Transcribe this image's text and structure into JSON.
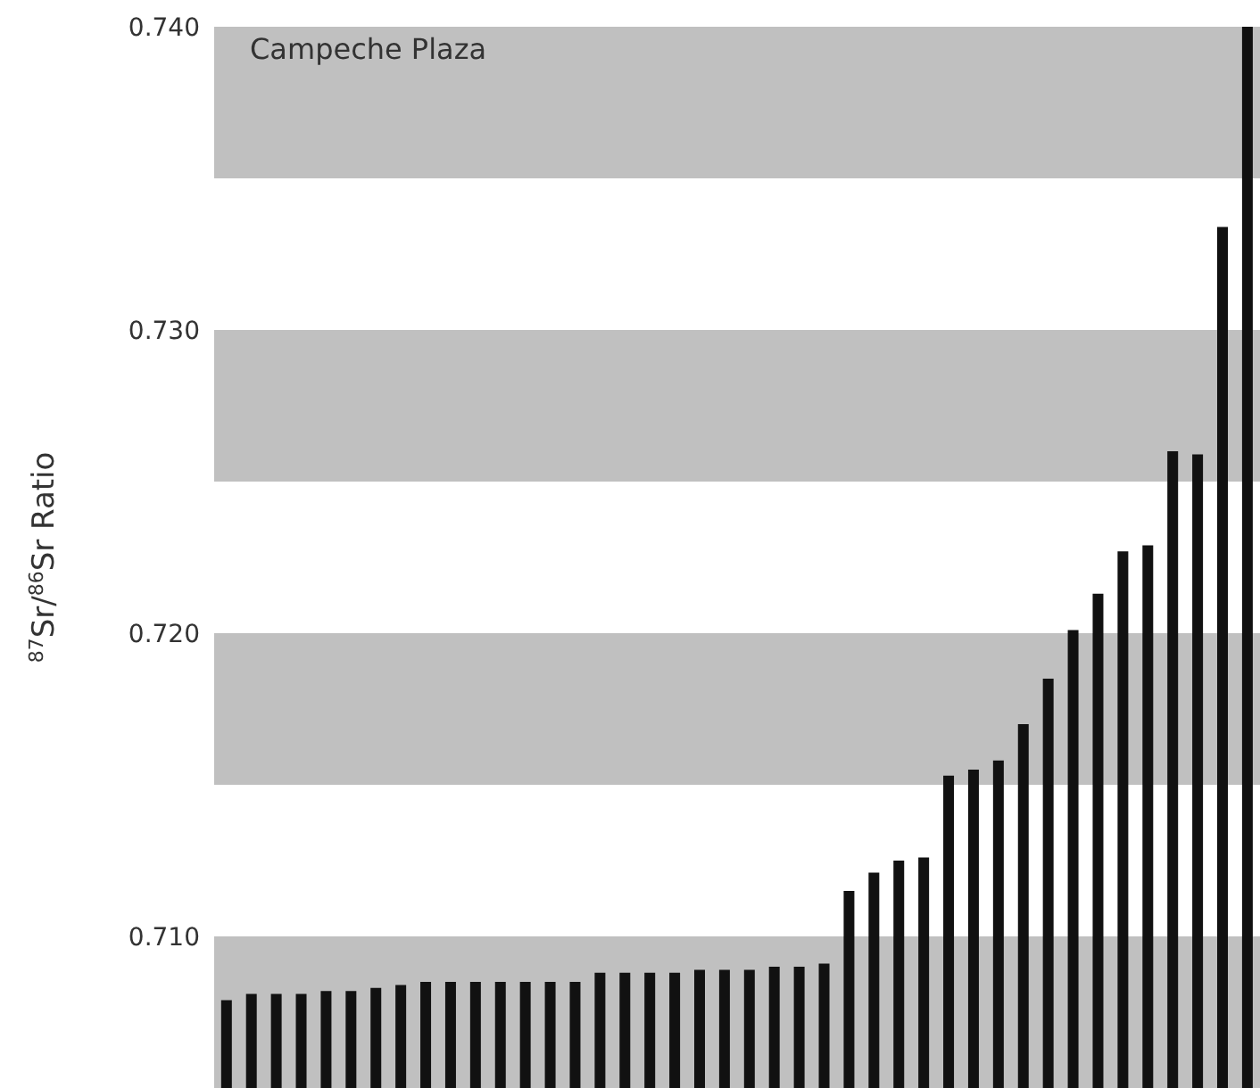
{
  "chart_data": {
    "type": "bar",
    "ylabel": "$^{87}$Sr/$^{86}$Sr Ratio",
    "annotations": [
      "Campeche Plaza"
    ],
    "categories": [
      null,
      null,
      null,
      null,
      null,
      null,
      null,
      null,
      null,
      null,
      null,
      null,
      null,
      null,
      null,
      null,
      null,
      null,
      null,
      null,
      null,
      null,
      null,
      null,
      null,
      null,
      null,
      null,
      null,
      null,
      null,
      null,
      null,
      null,
      null,
      null,
      null,
      null,
      null,
      null,
      null,
      null
    ],
    "values": [
      0.7079,
      0.7081,
      0.7081,
      0.7081,
      0.7082,
      0.7082,
      0.7083,
      0.7084,
      0.7085,
      0.7085,
      0.7085,
      0.7085,
      0.7085,
      0.7085,
      0.7085,
      0.7088,
      0.7088,
      0.7088,
      0.7088,
      0.7089,
      0.7089,
      0.7089,
      0.709,
      0.709,
      0.7091,
      0.7115,
      0.7121,
      0.7125,
      0.7126,
      0.7153,
      0.7155,
      0.7158,
      0.717,
      0.7185,
      0.7201,
      0.7213,
      0.7227,
      0.7229,
      0.726,
      0.7259,
      0.7334,
      0.74
    ],
    "color": "#111111",
    "ylim": [
      0.705,
      0.74
    ],
    "yticks": [
      {
        "value": 0.71,
        "label": "0.710"
      },
      {
        "value": 0.72,
        "label": "0.720"
      },
      {
        "value": 0.73,
        "label": "0.730"
      },
      {
        "value": 0.74,
        "label": "0.740"
      }
    ],
    "bands": [
      {
        "axis": "y",
        "from": 0.705,
        "to": 0.71,
        "color": "#c0c0c0"
      },
      {
        "axis": "y",
        "from": 0.715,
        "to": 0.72,
        "color": "#c0c0c0"
      },
      {
        "axis": "y",
        "from": 0.725,
        "to": 0.73,
        "color": "#c0c0c0"
      },
      {
        "axis": "y",
        "from": 0.735,
        "to": 0.74,
        "color": "#c0c0c0"
      }
    ],
    "grid": false,
    "legend": false,
    "tick_labels": "y"
  }
}
